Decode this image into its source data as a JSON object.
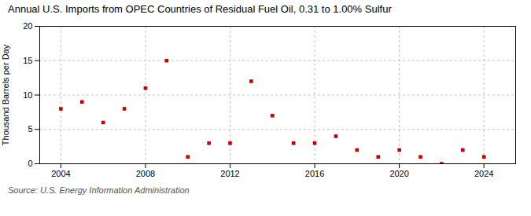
{
  "chart_data": {
    "type": "scatter",
    "title": "Annual U.S. Imports from OPEC Countries of Residual Fuel Oil, 0.31 to 1.00% Sulfur",
    "ylabel": "Thousand Barrels per Day",
    "source": "Source: U.S. Energy Information Administration",
    "x": [
      2004,
      2005,
      2006,
      2007,
      2008,
      2009,
      2010,
      2011,
      2012,
      2013,
      2014,
      2015,
      2016,
      2017,
      2018,
      2019,
      2020,
      2021,
      2022,
      2023,
      2024
    ],
    "values": [
      8,
      9,
      6,
      8,
      11,
      15,
      1,
      3,
      3,
      12,
      7,
      3,
      3,
      4,
      2,
      1,
      2,
      1,
      0,
      2,
      1
    ],
    "color": "#cc0000",
    "marker": "square",
    "xlim": [
      2003,
      2025.5
    ],
    "xticks": [
      2004,
      2008,
      2012,
      2016,
      2020,
      2024
    ],
    "ylim": [
      0,
      20
    ],
    "yticks": [
      0,
      5,
      10,
      15,
      20
    ],
    "grid": true
  }
}
